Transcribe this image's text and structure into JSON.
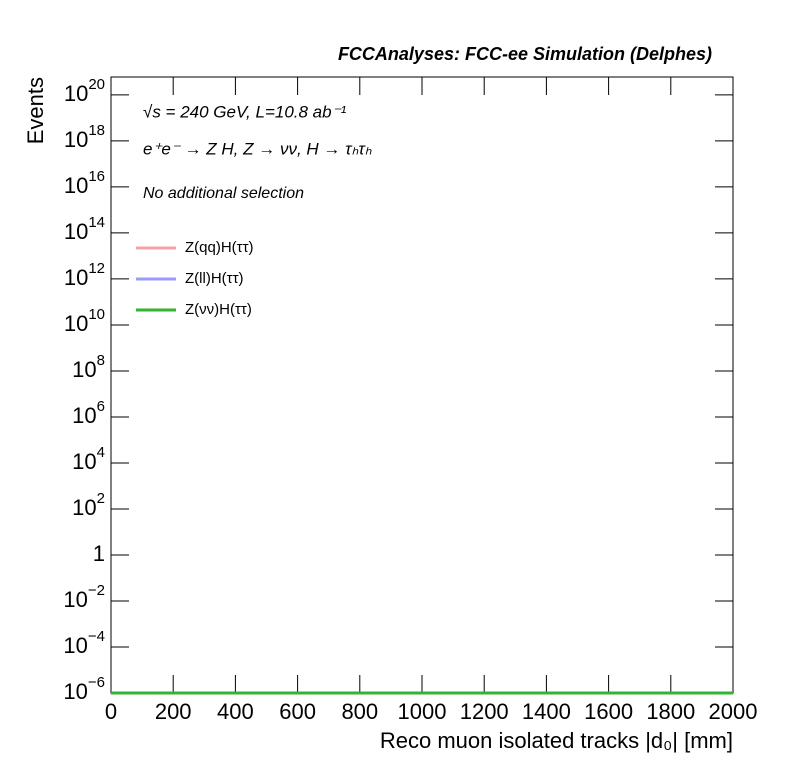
{
  "chart_data": {
    "type": "line",
    "title": "FCCAnalyses: FCC-ee Simulation (Delphes)",
    "annotations": [
      "√s = 240 GeV, L=10.8 ab⁻¹",
      "e⁺e⁻ → Z H, Z → νν, H → τₕτₕ",
      "No additional selection"
    ],
    "x_label": "Reco muon isolated tracks |d₀| [mm]",
    "y_label": "Events",
    "x": [
      0,
      2000
    ],
    "series": [
      {
        "name": "Z(qq)H(ττ)",
        "color": "#f4a3a3",
        "values": [
          1e-06,
          1e-06
        ]
      },
      {
        "name": "Z(ll)H(ττ)",
        "color": "#9b9bf7",
        "values": [
          1e-06,
          1e-06
        ]
      },
      {
        "name": "Z(νν)H(ττ)",
        "color": "#33b533",
        "values": [
          1e-06,
          1e-06
        ]
      }
    ],
    "xlim": [
      0,
      2000
    ],
    "xticks": [
      0,
      200,
      400,
      600,
      800,
      1000,
      1200,
      1400,
      1600,
      1800,
      2000
    ],
    "ylim": [
      1e-06,
      6e+20
    ],
    "log_y": true,
    "yticks": [
      {
        "value": 1e-06,
        "label": "10",
        "exponent": "−6"
      },
      {
        "value": 0.0001,
        "label": "10",
        "exponent": "−4"
      },
      {
        "value": 0.01,
        "label": "10",
        "exponent": "−2"
      },
      1,
      {
        "value": 100,
        "label": "10",
        "exponent": "2"
      },
      {
        "value": 10000.0,
        "label": "10",
        "exponent": "4"
      },
      {
        "value": 1000000.0,
        "label": "10",
        "exponent": "6"
      },
      {
        "value": 100000000.0,
        "label": "10",
        "exponent": "8"
      },
      {
        "value": 10000000000.0,
        "label": "10",
        "exponent": "10"
      },
      {
        "value": 1000000000000.0,
        "label": "10",
        "exponent": "12"
      },
      {
        "value": 100000000000000.0,
        "label": "10",
        "exponent": "14"
      },
      {
        "value": 1e+16,
        "label": "10",
        "exponent": "16"
      },
      {
        "value": 1e+18,
        "label": "10",
        "exponent": "18"
      },
      {
        "value": 1e+20,
        "label": "10",
        "exponent": "20"
      }
    ],
    "legend": "upper-left"
  }
}
